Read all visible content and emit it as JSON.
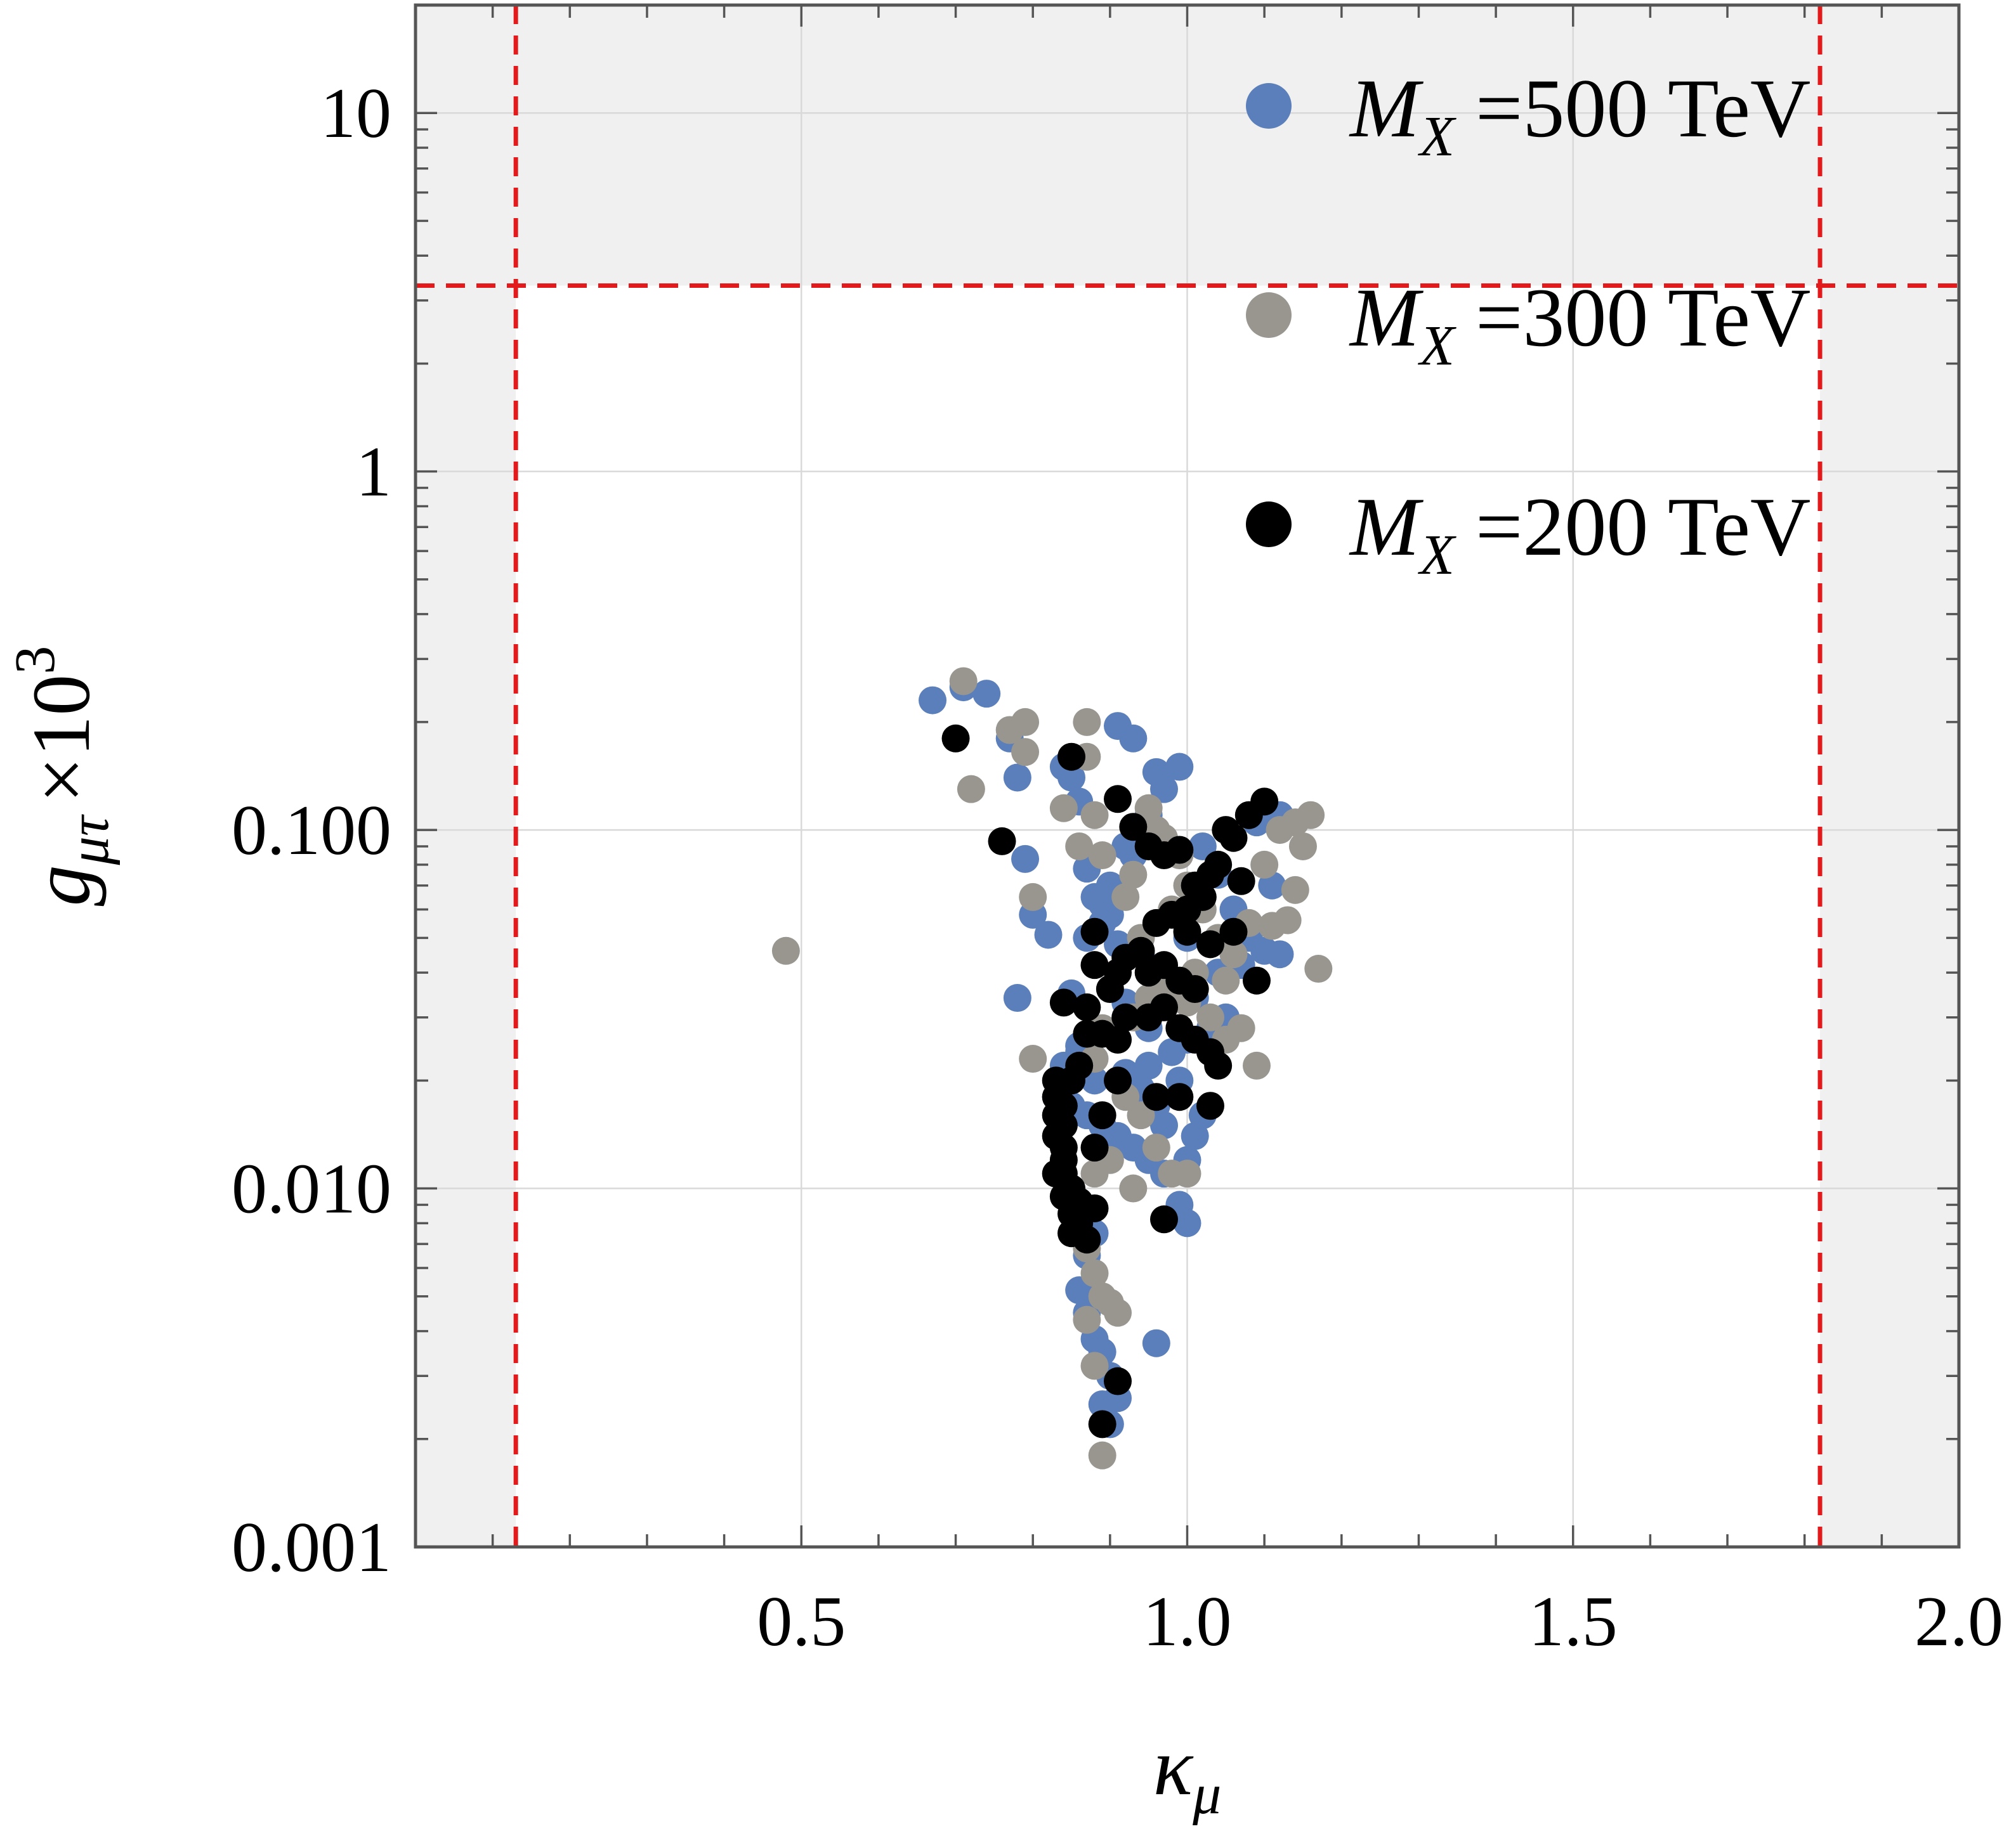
{
  "chart_data": {
    "type": "scatter",
    "title": "",
    "xlabel_base": "κ",
    "xlabel_sub": "μ",
    "ylabel_base": "g",
    "ylabel_sub": "μτ",
    "ylabel_mult": "×10",
    "ylabel_exp": "3",
    "xscale": "linear",
    "yscale": "log",
    "xlim": [
      0.0,
      2.0
    ],
    "ylim": [
      0.001,
      20
    ],
    "xticks": [
      {
        "value": 0.5,
        "label": "0.5"
      },
      {
        "value": 1.0,
        "label": "1.0"
      },
      {
        "value": 1.5,
        "label": "1.5"
      },
      {
        "value": 2.0,
        "label": "2.0"
      }
    ],
    "yticks": [
      {
        "value": 0.001,
        "label": "0.001"
      },
      {
        "value": 0.01,
        "label": "0.010"
      },
      {
        "value": 0.1,
        "label": "0.100"
      },
      {
        "value": 1,
        "label": "1"
      },
      {
        "value": 10,
        "label": "10"
      }
    ],
    "grid": true,
    "excluded_regions": {
      "kappa_min": 0.13,
      "kappa_max": 1.82,
      "g_max": 3.3,
      "shade_color": "#f0f0f0",
      "line_color": "#e31a1c"
    },
    "legend_position": "top-right",
    "series": [
      {
        "name": "500 TeV",
        "legend_prefix": "M",
        "legend_sub": "X",
        "legend_eq": " =",
        "color": "#5b7fba",
        "points": [
          [
            0.67,
            0.23
          ],
          [
            0.71,
            0.25
          ],
          [
            0.74,
            0.24
          ],
          [
            0.77,
            0.18
          ],
          [
            0.78,
            0.14
          ],
          [
            0.79,
            0.083
          ],
          [
            0.8,
            0.058
          ],
          [
            0.82,
            0.051
          ],
          [
            0.78,
            0.034
          ],
          [
            0.84,
            0.15
          ],
          [
            0.85,
            0.14
          ],
          [
            0.86,
            0.12
          ],
          [
            0.87,
            0.078
          ],
          [
            0.88,
            0.065
          ],
          [
            0.89,
            0.062
          ],
          [
            0.9,
            0.07
          ],
          [
            0.91,
            0.195
          ],
          [
            0.93,
            0.18
          ],
          [
            0.96,
            0.145
          ],
          [
            0.97,
            0.13
          ],
          [
            0.99,
            0.15
          ],
          [
            0.95,
            0.11
          ],
          [
            0.93,
            0.085
          ],
          [
            0.92,
            0.09
          ],
          [
            0.9,
            0.058
          ],
          [
            0.91,
            0.048
          ],
          [
            0.94,
            0.045
          ],
          [
            0.96,
            0.04
          ],
          [
            0.98,
            0.036
          ],
          [
            1.0,
            0.05
          ],
          [
            1.02,
            0.09
          ],
          [
            1.04,
            0.075
          ],
          [
            1.06,
            0.06
          ],
          [
            1.08,
            0.05
          ],
          [
            1.1,
            0.046
          ],
          [
            1.12,
            0.045
          ],
          [
            1.11,
            0.07
          ],
          [
            1.12,
            0.11
          ],
          [
            1.09,
            0.105
          ],
          [
            1.05,
            0.03
          ],
          [
            1.03,
            0.028
          ],
          [
            1.0,
            0.026
          ],
          [
            0.98,
            0.024
          ],
          [
            0.95,
            0.022
          ],
          [
            0.92,
            0.021
          ],
          [
            0.88,
            0.02
          ],
          [
            0.86,
            0.024
          ],
          [
            0.84,
            0.022
          ],
          [
            0.83,
            0.018
          ],
          [
            0.85,
            0.017
          ],
          [
            0.87,
            0.016
          ],
          [
            0.89,
            0.015
          ],
          [
            0.91,
            0.014
          ],
          [
            0.93,
            0.013
          ],
          [
            0.95,
            0.012
          ],
          [
            0.97,
            0.011
          ],
          [
            1.0,
            0.012
          ],
          [
            1.01,
            0.014
          ],
          [
            1.02,
            0.016
          ],
          [
            0.99,
            0.02
          ],
          [
            0.96,
            0.017
          ],
          [
            0.94,
            0.019
          ],
          [
            0.86,
            0.009
          ],
          [
            0.87,
            0.008
          ],
          [
            0.88,
            0.0075
          ],
          [
            0.87,
            0.0065
          ],
          [
            0.86,
            0.0052
          ],
          [
            0.87,
            0.0045
          ],
          [
            0.88,
            0.0038
          ],
          [
            0.89,
            0.0035
          ],
          [
            0.9,
            0.003
          ],
          [
            0.89,
            0.0025
          ],
          [
            0.9,
            0.0022
          ],
          [
            0.91,
            0.0026
          ],
          [
            0.96,
            0.0037
          ],
          [
            1.0,
            0.008
          ],
          [
            0.99,
            0.009
          ],
          [
            0.97,
            0.015
          ],
          [
            0.92,
            0.033
          ],
          [
            0.95,
            0.028
          ],
          [
            1.01,
            0.034
          ],
          [
            1.04,
            0.04
          ],
          [
            1.07,
            0.042
          ],
          [
            0.86,
            0.025
          ],
          [
            0.85,
            0.035
          ],
          [
            0.87,
            0.05
          ],
          [
            0.89,
            0.055
          ]
        ]
      },
      {
        "name": "300 TeV",
        "legend_prefix": "M",
        "legend_sub": "X",
        "legend_eq": " =",
        "color": "#999690",
        "points": [
          [
            0.48,
            0.046
          ],
          [
            0.71,
            0.26
          ],
          [
            0.72,
            0.13
          ],
          [
            0.77,
            0.19
          ],
          [
            0.79,
            0.2
          ],
          [
            0.79,
            0.165
          ],
          [
            0.8,
            0.065
          ],
          [
            0.8,
            0.023
          ],
          [
            0.84,
            0.115
          ],
          [
            0.86,
            0.09
          ],
          [
            0.87,
            0.2
          ],
          [
            0.87,
            0.16
          ],
          [
            0.88,
            0.11
          ],
          [
            0.89,
            0.085
          ],
          [
            0.92,
            0.065
          ],
          [
            0.93,
            0.075
          ],
          [
            0.95,
            0.115
          ],
          [
            0.96,
            0.1
          ],
          [
            0.97,
            0.095
          ],
          [
            0.99,
            0.085
          ],
          [
            1.0,
            0.07
          ],
          [
            1.02,
            0.06
          ],
          [
            1.04,
            0.05
          ],
          [
            1.06,
            0.045
          ],
          [
            1.08,
            0.055
          ],
          [
            1.1,
            0.08
          ],
          [
            1.12,
            0.1
          ],
          [
            1.14,
            0.105
          ],
          [
            1.16,
            0.11
          ],
          [
            1.15,
            0.09
          ],
          [
            1.14,
            0.068
          ],
          [
            1.13,
            0.056
          ],
          [
            1.11,
            0.054
          ],
          [
            1.17,
            0.041
          ],
          [
            1.09,
            0.022
          ],
          [
            1.05,
            0.026
          ],
          [
            1.03,
            0.03
          ],
          [
            1.0,
            0.033
          ],
          [
            0.97,
            0.036
          ],
          [
            0.95,
            0.034
          ],
          [
            0.93,
            0.03
          ],
          [
            0.91,
            0.026
          ],
          [
            0.89,
            0.028
          ],
          [
            0.88,
            0.023
          ],
          [
            0.86,
            0.022
          ],
          [
            0.92,
            0.018
          ],
          [
            0.94,
            0.016
          ],
          [
            0.96,
            0.013
          ],
          [
            0.98,
            0.011
          ],
          [
            1.0,
            0.011
          ],
          [
            0.93,
            0.01
          ],
          [
            0.9,
            0.012
          ],
          [
            0.88,
            0.011
          ],
          [
            0.87,
            0.0068
          ],
          [
            0.88,
            0.0058
          ],
          [
            0.89,
            0.005
          ],
          [
            0.87,
            0.0043
          ],
          [
            0.9,
            0.0048
          ],
          [
            0.91,
            0.0045
          ],
          [
            0.88,
            0.0032
          ],
          [
            0.89,
            0.0018
          ],
          [
            1.01,
            0.04
          ],
          [
            1.05,
            0.038
          ],
          [
            1.07,
            0.028
          ],
          [
            0.98,
            0.06
          ],
          [
            0.94,
            0.05
          ]
        ]
      },
      {
        "name": "200 TeV",
        "legend_prefix": "M",
        "legend_sub": "X",
        "legend_eq": " =",
        "color": "#000000",
        "points": [
          [
            0.7,
            0.18
          ],
          [
            0.76,
            0.093
          ],
          [
            0.85,
            0.16
          ],
          [
            0.91,
            0.122
          ],
          [
            0.93,
            0.102
          ],
          [
            0.95,
            0.09
          ],
          [
            0.97,
            0.085
          ],
          [
            0.99,
            0.088
          ],
          [
            1.01,
            0.07
          ],
          [
            1.03,
            0.075
          ],
          [
            1.04,
            0.08
          ],
          [
            1.06,
            0.095
          ],
          [
            1.08,
            0.11
          ],
          [
            1.1,
            0.12
          ],
          [
            1.02,
            0.065
          ],
          [
            1.0,
            0.06
          ],
          [
            0.98,
            0.058
          ],
          [
            0.96,
            0.055
          ],
          [
            0.94,
            0.046
          ],
          [
            0.92,
            0.044
          ],
          [
            0.91,
            0.04
          ],
          [
            0.9,
            0.036
          ],
          [
            0.88,
            0.042
          ],
          [
            0.88,
            0.052
          ],
          [
            0.95,
            0.04
          ],
          [
            0.97,
            0.042
          ],
          [
            0.99,
            0.038
          ],
          [
            1.01,
            0.036
          ],
          [
            1.03,
            0.048
          ],
          [
            1.06,
            0.052
          ],
          [
            1.07,
            0.072
          ],
          [
            1.09,
            0.038
          ],
          [
            0.84,
            0.033
          ],
          [
            0.87,
            0.032
          ],
          [
            0.89,
            0.027
          ],
          [
            0.91,
            0.026
          ],
          [
            0.92,
            0.03
          ],
          [
            0.95,
            0.03
          ],
          [
            0.97,
            0.032
          ],
          [
            0.99,
            0.028
          ],
          [
            1.01,
            0.026
          ],
          [
            1.03,
            0.024
          ],
          [
            1.04,
            0.022
          ],
          [
            0.87,
            0.027
          ],
          [
            0.86,
            0.022
          ],
          [
            0.85,
            0.02
          ],
          [
            0.83,
            0.02
          ],
          [
            0.83,
            0.018
          ],
          [
            0.84,
            0.017
          ],
          [
            0.83,
            0.016
          ],
          [
            0.84,
            0.015
          ],
          [
            0.83,
            0.014
          ],
          [
            0.84,
            0.013
          ],
          [
            0.84,
            0.012
          ],
          [
            0.83,
            0.011
          ],
          [
            0.84,
            0.011
          ],
          [
            0.85,
            0.01
          ],
          [
            0.84,
            0.0095
          ],
          [
            0.86,
            0.0092
          ],
          [
            0.85,
            0.0085
          ],
          [
            0.86,
            0.008
          ],
          [
            0.85,
            0.0075
          ],
          [
            0.87,
            0.0072
          ],
          [
            0.88,
            0.0088
          ],
          [
            0.88,
            0.013
          ],
          [
            0.89,
            0.016
          ],
          [
            0.91,
            0.02
          ],
          [
            0.96,
            0.018
          ],
          [
            0.99,
            0.018
          ],
          [
            1.03,
            0.017
          ],
          [
            0.97,
            0.0082
          ],
          [
            0.91,
            0.0029
          ],
          [
            0.89,
            0.0022
          ],
          [
            1.0,
            0.052
          ],
          [
            1.05,
            0.1
          ]
        ]
      }
    ]
  }
}
